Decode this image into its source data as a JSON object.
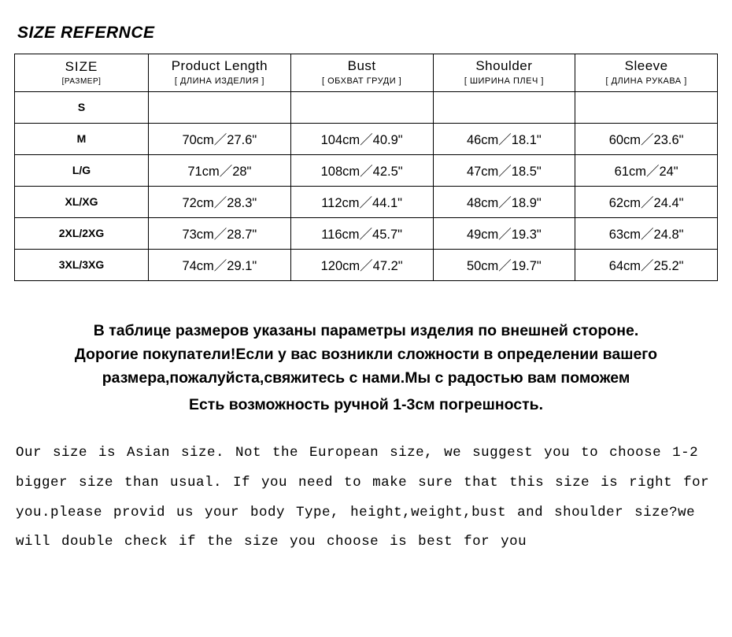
{
  "title": "SIZE REFERNCE",
  "table": {
    "headers": [
      {
        "main": "SIZE",
        "sub": "[РАЗМЕР]"
      },
      {
        "main": "Product Length",
        "sub": "[ ДЛИНА ИЗДЕЛИЯ ]"
      },
      {
        "main": "Bust",
        "sub": "[ ОБХВАТ ГРУДИ ]"
      },
      {
        "main": "Shoulder",
        "sub": "[ ШИРИНА ПЛЕЧ ]"
      },
      {
        "main": "Sleeve",
        "sub": "[ ДЛИНА РУКАВА ]"
      }
    ],
    "rows": [
      {
        "size": "S",
        "cells": [
          "",
          "",
          "",
          ""
        ]
      },
      {
        "size": "M",
        "cells": [
          "70cm／27.6\"",
          "104cm／40.9\"",
          "46cm／18.1\"",
          "60cm／23.6\""
        ]
      },
      {
        "size": "L/G",
        "cells": [
          "71cm／28\"",
          "108cm／42.5\"",
          "47cm／18.5\"",
          "61cm／24\""
        ]
      },
      {
        "size": "XL/XG",
        "cells": [
          "72cm／28.3\"",
          "112cm／44.1\"",
          "48cm／18.9\"",
          "62cm／24.4\""
        ]
      },
      {
        "size": "2XL/2XG",
        "cells": [
          "73cm／28.7\"",
          "116cm／45.7\"",
          "49cm／19.3\"",
          "63cm／24.8\""
        ]
      },
      {
        "size": "3XL/3XG",
        "cells": [
          "74cm／29.1\"",
          "120cm／47.2\"",
          "50cm／19.7\"",
          "64cm／25.2\""
        ]
      }
    ]
  },
  "ru": {
    "line1": "В таблице размеров указаны параметры изделия по внешней стороне.",
    "line2": "Дорогие покупатели!Если у вас возникли сложности в определении вашего размера,пожалуйста,свяжитесь с нами.Мы с радостью вам поможем",
    "line3": "Есть возможность ручной 1-3см погрешность."
  },
  "en": "Our size is Asian size. Not the European size, we suggest you to choose 1-2 bigger size than usual. If you need to make sure that this size is right for you.please provid us your body Type, height,weight,bust and shoulder size?we will double check if the size you choose is best for you",
  "colors": {
    "text": "#000000",
    "bg": "#ffffff",
    "border": "#000000"
  }
}
